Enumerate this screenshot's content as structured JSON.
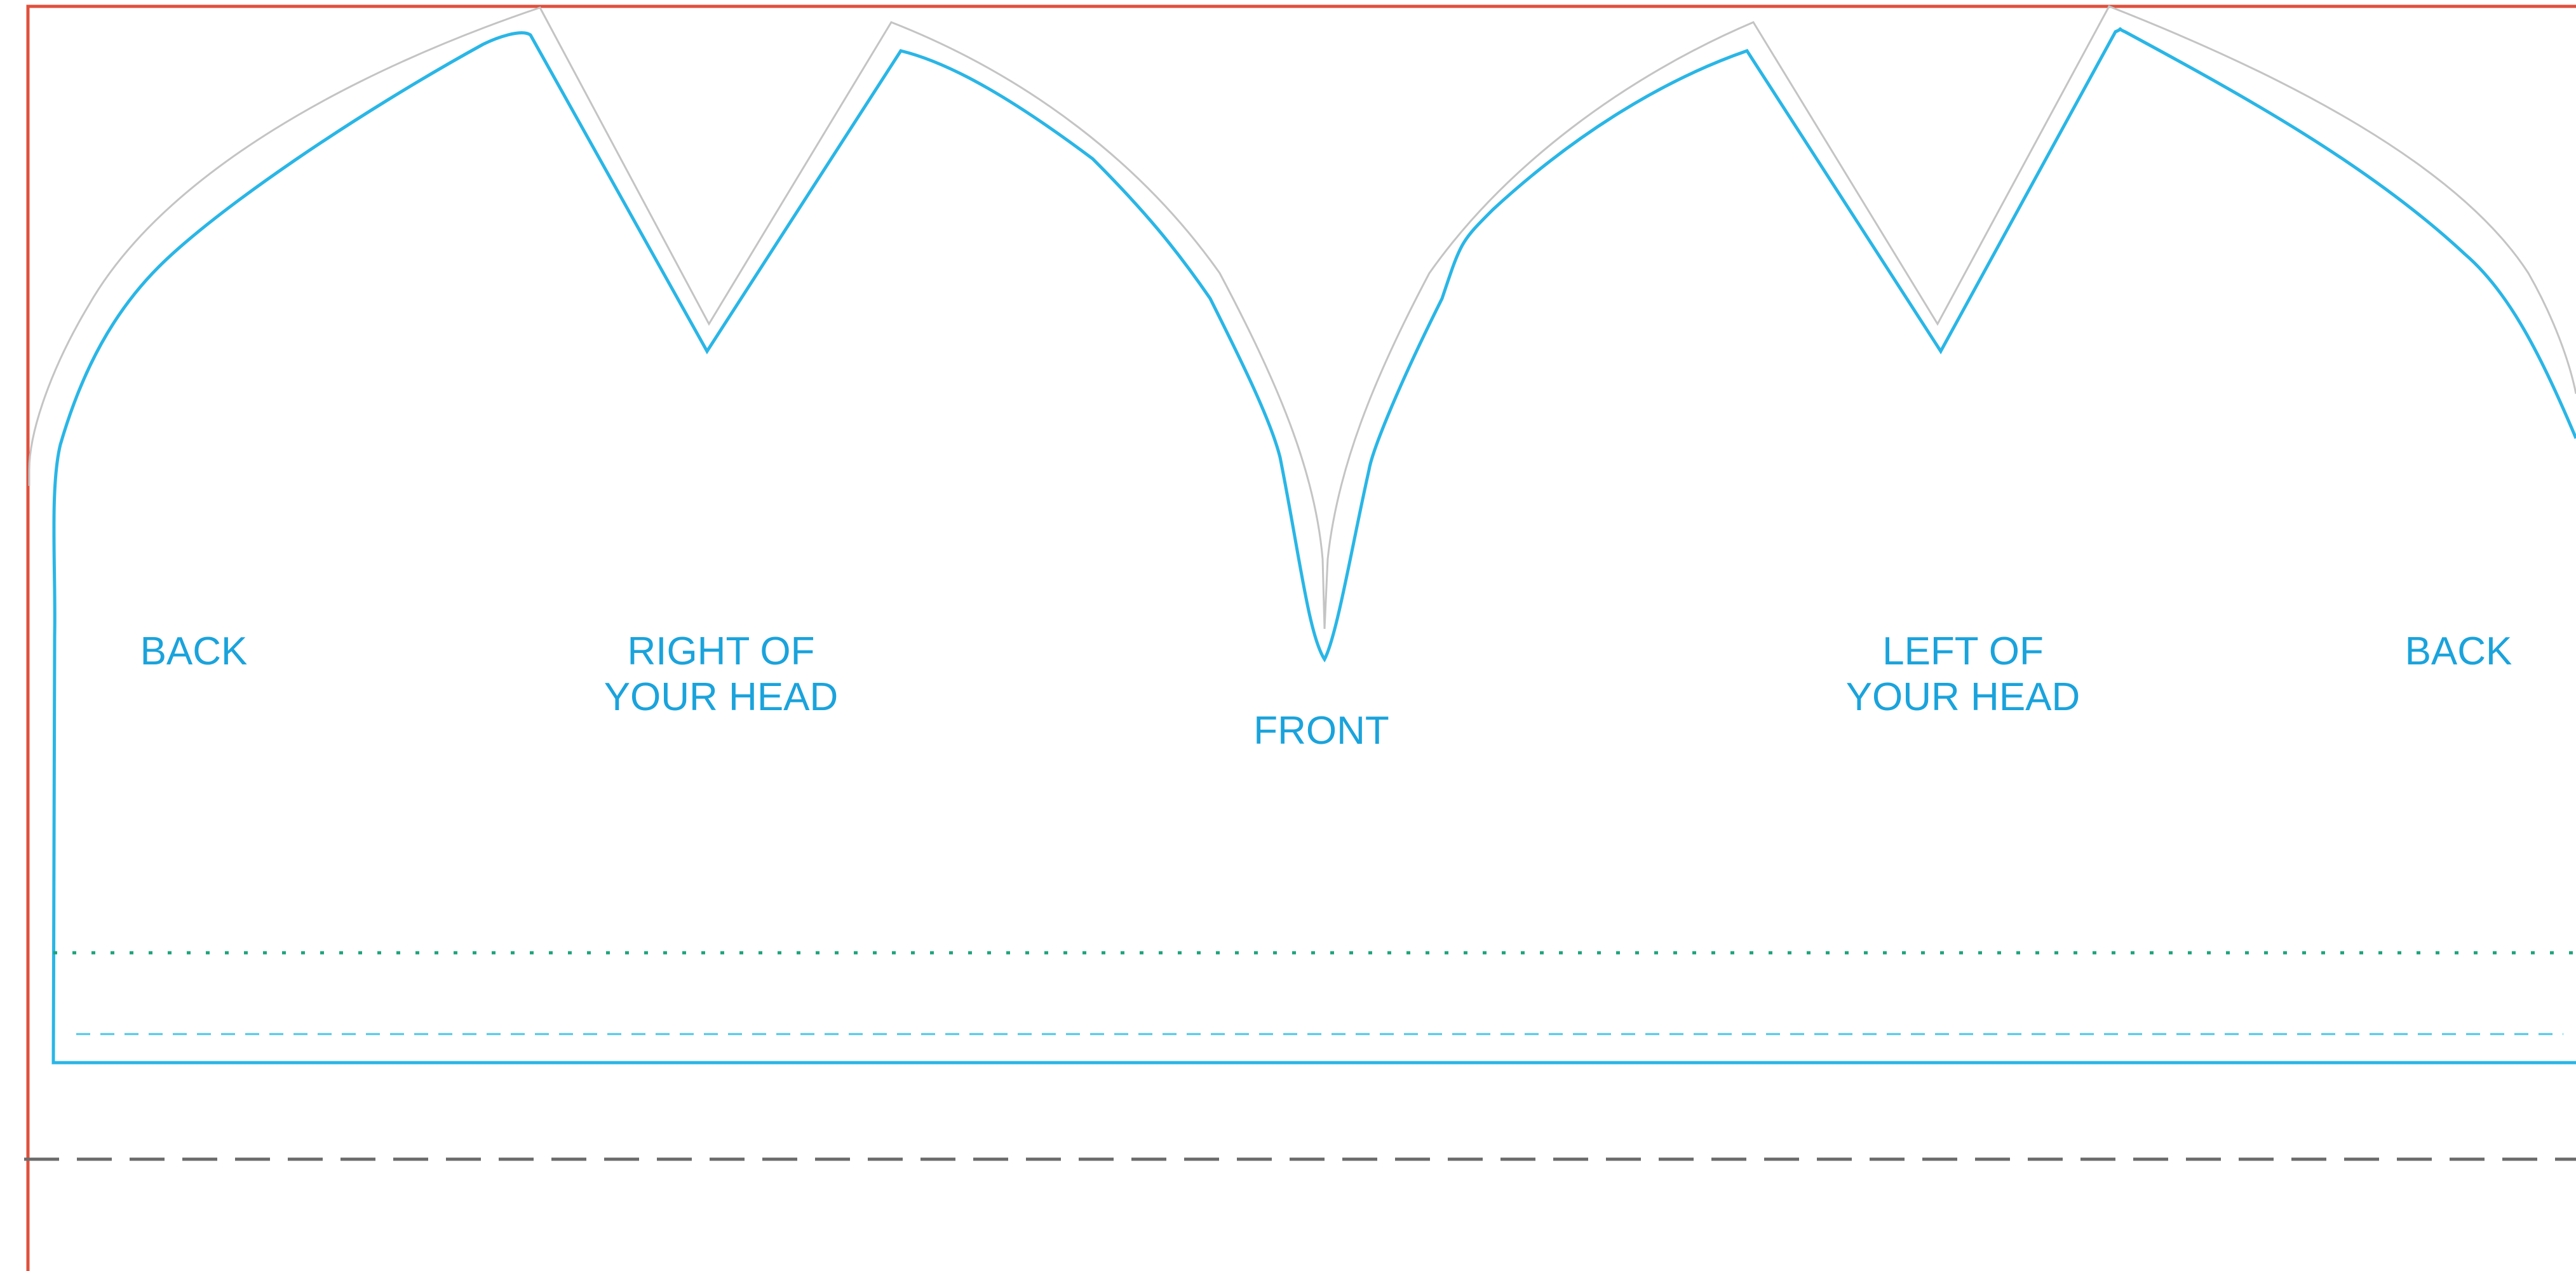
{
  "template": {
    "labels": {
      "back_left": "BACK",
      "right_of_head": [
        "RIGHT OF",
        "YOUR HEAD"
      ],
      "front": "FRONT",
      "left_of_head": [
        "LEFT OF",
        "YOUR HEAD"
      ],
      "back_right": "BACK"
    }
  },
  "colors": {
    "page_border": "#e0503c",
    "cut_line": "#29b6e6",
    "seam_allowance": "#c4c4c4",
    "label_text": "#1aa3dc",
    "dotted_fold_line": "#1ea37a",
    "dashed_guide_line": "#4cc6e8",
    "page_break_line": "#6b6b6b"
  },
  "legend": {
    "line_styles": [
      "solid-blue-cut-line",
      "thin-gray-outer-outline",
      "green-dotted-line",
      "cyan-dashed-line",
      "gray-long-dashed-line"
    ]
  }
}
